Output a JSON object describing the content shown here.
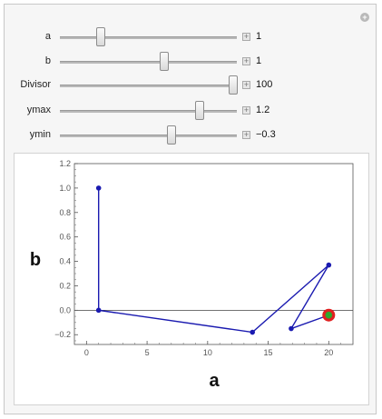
{
  "controls": [
    {
      "id": "a",
      "label": "a",
      "value": "1",
      "position": 0.23
    },
    {
      "id": "b",
      "label": "b",
      "value": "1",
      "position": 0.59
    },
    {
      "id": "divisor",
      "label": "Divisor",
      "value": "100",
      "position": 0.98
    },
    {
      "id": "ymax",
      "label": "ymax",
      "value": "1.2",
      "position": 0.79
    },
    {
      "id": "ymin",
      "label": "ymin",
      "value": "−0.3",
      "position": 0.63
    }
  ],
  "chart_data": {
    "type": "line",
    "xlabel": "a",
    "ylabel": "b",
    "xlim": [
      -1,
      22
    ],
    "ylim": [
      -0.28,
      1.2
    ],
    "x_ticks": [
      0,
      5,
      10,
      15,
      20
    ],
    "x_tick_labels": [
      "0",
      "5",
      "10",
      "15",
      "20"
    ],
    "y_ticks": [
      1.2,
      1.0,
      0.8,
      0.6,
      0.4,
      0.2,
      0.0,
      -0.2
    ],
    "y_tick_labels": [
      "1.2",
      "1.0",
      "0.8",
      "0.6",
      "0.4",
      "0.2",
      "0.0",
      "−0.2"
    ],
    "grid": false,
    "series": [
      {
        "color": "#1a1ab0",
        "points": [
          [
            1,
            1.0
          ],
          [
            1,
            0.0
          ],
          [
            13.7,
            -0.18
          ],
          [
            20,
            0.37
          ],
          [
            16.9,
            -0.15
          ],
          [
            20,
            -0.04
          ]
        ]
      }
    ],
    "marker": {
      "x": 20,
      "y": -0.04,
      "outer_color": "#e02020",
      "inner_color": "#2ea82e"
    }
  }
}
